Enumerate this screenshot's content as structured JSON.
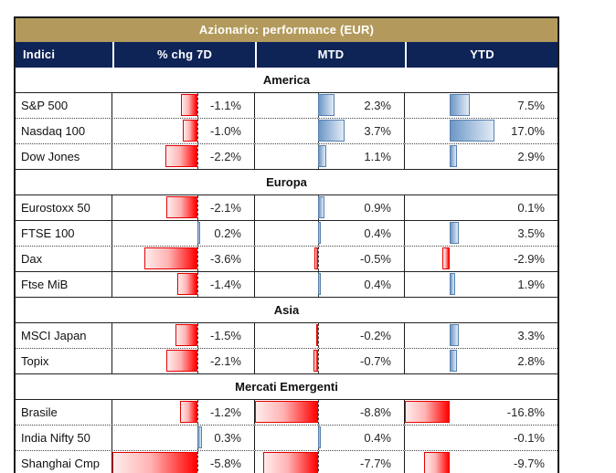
{
  "title": "Azionario: performance (EUR)",
  "header": {
    "indici": "Indici",
    "chg7d": "% chg 7D",
    "mtd": "MTD",
    "ytd": "YTD"
  },
  "colors": {
    "title_gold": "#B39A5C",
    "header_navy": "#0E2356",
    "negative_bar_red": "#FF0000",
    "negative_bar_border": "#E60000",
    "positive_bar_blue": "#6D97C6",
    "positive_bar_border": "#5880AE"
  },
  "chart_data": {
    "type": "table",
    "title": "Azionario: performance (EUR)",
    "columns": [
      "Indici",
      "% chg 7D",
      "MTD",
      "YTD"
    ],
    "value_unit": "%",
    "bar_visualization": "excel-gradient-databars-per-column-scaled",
    "axis_line_columns": [
      "% chg 7D",
      "MTD"
    ],
    "column_ranges": {
      "% chg 7D": [
        -5.8,
        0.3
      ],
      "MTD": [
        -8.8,
        3.7
      ],
      "YTD": [
        -16.8,
        17.0
      ]
    },
    "sections": [
      {
        "name": "America",
        "rows": [
          {
            "label": "S&P 500",
            "values": [
              -1.1,
              2.3,
              7.5
            ],
            "display": [
              "-1.1%",
              "2.3%",
              "7.5%"
            ],
            "divider": "dotted"
          },
          {
            "label": "Nasdaq 100",
            "values": [
              -1.0,
              3.7,
              17.0
            ],
            "display": [
              "-1.0%",
              "3.7%",
              "17.0%"
            ],
            "divider": "dotted"
          },
          {
            "label": "Dow Jones",
            "values": [
              -2.2,
              1.1,
              2.9
            ],
            "display": [
              "-2.2%",
              "1.1%",
              "2.9%"
            ],
            "divider": "none"
          }
        ]
      },
      {
        "name": "Europa",
        "rows": [
          {
            "label": "Eurostoxx 50",
            "values": [
              -2.1,
              0.9,
              0.1
            ],
            "display": [
              "-2.1%",
              "0.9%",
              "0.1%"
            ],
            "divider": "solid"
          },
          {
            "label": "FTSE 100",
            "values": [
              0.2,
              0.4,
              3.5
            ],
            "display": [
              "0.2%",
              "0.4%",
              "3.5%"
            ],
            "divider": "dotted"
          },
          {
            "label": "Dax",
            "values": [
              -3.6,
              -0.5,
              -2.9
            ],
            "display": [
              "-3.6%",
              "-0.5%",
              "-2.9%"
            ],
            "divider": "solid"
          },
          {
            "label": "Ftse MiB",
            "values": [
              -1.4,
              0.4,
              1.9
            ],
            "display": [
              "-1.4%",
              "0.4%",
              "1.9%"
            ],
            "divider": "none"
          }
        ]
      },
      {
        "name": "Asia",
        "rows": [
          {
            "label": "MSCI Japan",
            "values": [
              -1.5,
              -0.2,
              3.3
            ],
            "display": [
              "-1.5%",
              "-0.2%",
              "3.3%"
            ],
            "divider": "dotted"
          },
          {
            "label": "Topix",
            "values": [
              -2.1,
              -0.7,
              2.8
            ],
            "display": [
              "-2.1%",
              "-0.7%",
              "2.8%"
            ],
            "divider": "none"
          }
        ]
      },
      {
        "name": "Mercati Emergenti",
        "rows": [
          {
            "label": "Brasile",
            "values": [
              -1.2,
              -8.8,
              -16.8
            ],
            "display": [
              "-1.2%",
              "-8.8%",
              "-16.8%"
            ],
            "divider": "dotted"
          },
          {
            "label": "India Nifty 50",
            "values": [
              0.3,
              0.4,
              -0.1
            ],
            "display": [
              "0.3%",
              "0.4%",
              "-0.1%"
            ],
            "divider": "dotted"
          },
          {
            "label": "Shanghai Cmp",
            "values": [
              -5.8,
              -7.7,
              -9.7
            ],
            "display": [
              "-5.8%",
              "-7.7%",
              "-9.7%"
            ],
            "divider": "none"
          }
        ]
      }
    ]
  }
}
